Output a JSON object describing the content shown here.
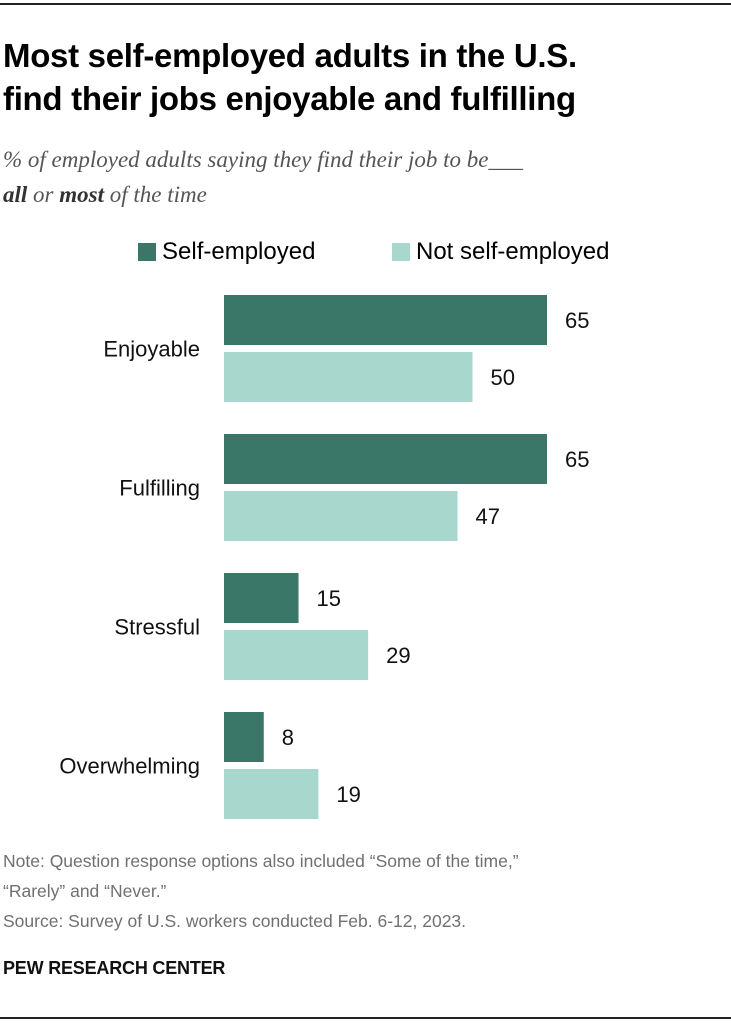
{
  "header": {
    "title_line1": "Most self-employed adults in the U.S.",
    "title_line2": "find their jobs enjoyable and fulfilling",
    "subtitle_line1": "% of employed adults saying they find their job to be___",
    "subtitle_bold1": "all",
    "subtitle_or": " or ",
    "subtitle_bold2": "most",
    "subtitle_tail": " of the time"
  },
  "colors": {
    "self_employed": "#3b7768",
    "not_self_employed": "#a8d8cd"
  },
  "chart_data": {
    "type": "bar",
    "orientation": "horizontal",
    "categories": [
      "Enjoyable",
      "Fulfilling",
      "Stressful",
      "Overwhelming"
    ],
    "series": [
      {
        "name": "Self-employed",
        "values": [
          65,
          65,
          15,
          8
        ]
      },
      {
        "name": "Not self-employed",
        "values": [
          50,
          47,
          29,
          19
        ]
      }
    ],
    "xlim": [
      0,
      100
    ],
    "grid": false,
    "legend": "top"
  },
  "notes": {
    "note_line1": "Note: Question response options also included “Some of the time,”",
    "note_line2": "“Rarely” and “Never.”",
    "source": "Source: Survey of U.S. workers conducted Feb. 6-12, 2023."
  },
  "footer": {
    "org": "PEW RESEARCH CENTER"
  }
}
